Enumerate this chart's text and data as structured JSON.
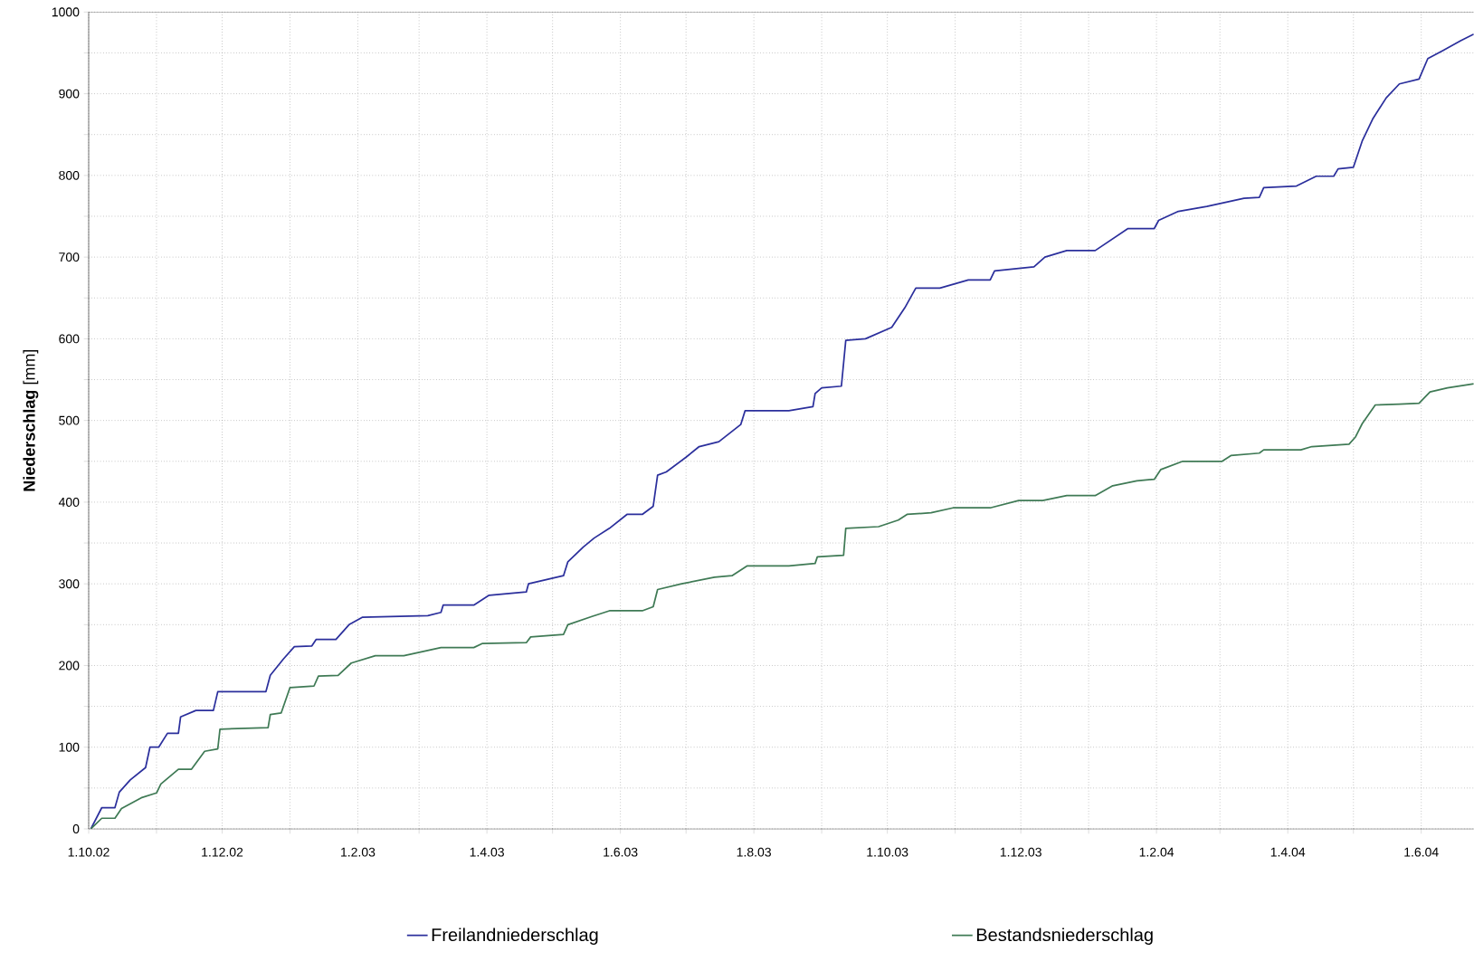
{
  "chart_data": {
    "type": "line",
    "ylabel": "**Niederschlag**  [mm]",
    "xlim": [
      "2002-10-01",
      "2004-06-25"
    ],
    "ylim": [
      0,
      1000
    ],
    "xticks": [
      {
        "value": "2002-10-01",
        "label": "1.10.02"
      },
      {
        "value": "2002-11-01",
        "label": null
      },
      {
        "value": "2002-12-01",
        "label": "1.12.02"
      },
      {
        "value": "2003-01-01",
        "label": null
      },
      {
        "value": "2003-02-01",
        "label": "1.2.03"
      },
      {
        "value": "2003-03-01",
        "label": null
      },
      {
        "value": "2003-04-01",
        "label": "1.4.03"
      },
      {
        "value": "2003-05-01",
        "label": null
      },
      {
        "value": "2003-06-01",
        "label": "1.6.03"
      },
      {
        "value": "2003-07-01",
        "label": null
      },
      {
        "value": "2003-08-01",
        "label": "1.8.03"
      },
      {
        "value": "2003-09-01",
        "label": null
      },
      {
        "value": "2003-10-01",
        "label": "1.10.03"
      },
      {
        "value": "2003-11-01",
        "label": null
      },
      {
        "value": "2003-12-01",
        "label": "1.12.03"
      },
      {
        "value": "2004-01-01",
        "label": null
      },
      {
        "value": "2004-02-01",
        "label": "1.2.04"
      },
      {
        "value": "2004-03-01",
        "label": null
      },
      {
        "value": "2004-04-01",
        "label": "1.4.04"
      },
      {
        "value": "2004-05-01",
        "label": null
      },
      {
        "value": "2004-06-01",
        "label": "1.6.04"
      }
    ],
    "yticks": [
      0,
      {
        "value": 50,
        "label": null
      },
      100,
      {
        "value": 150,
        "label": null
      },
      200,
      {
        "value": 250,
        "label": null
      },
      300,
      {
        "value": 350,
        "label": null
      },
      400,
      {
        "value": 450,
        "label": null
      },
      500,
      {
        "value": 550,
        "label": null
      },
      600,
      {
        "value": 650,
        "label": null
      },
      700,
      {
        "value": 750,
        "label": null
      },
      800,
      {
        "value": 850,
        "label": null
      },
      900,
      {
        "value": 950,
        "label": null
      },
      1000
    ],
    "grid": true,
    "legend": "bottom",
    "series": [
      {
        "name": "Freilandniederschlag",
        "color": "#2b2f9c",
        "x": [
          "2002-10-02",
          "2002-10-07",
          "2002-10-13",
          "2002-10-15",
          "2002-10-20",
          "2002-10-27",
          "2002-10-29",
          "2002-11-02",
          "2002-11-06",
          "2002-11-11",
          "2002-11-12",
          "2002-11-19",
          "2002-11-27",
          "2002-11-29",
          "2002-12-21",
          "2002-12-23",
          "2002-12-29",
          "2003-01-03",
          "2003-01-11",
          "2003-01-13",
          "2003-01-22",
          "2003-01-28",
          "2003-02-03",
          "2003-03-05",
          "2003-03-11",
          "2003-03-12",
          "2003-03-26",
          "2003-04-02",
          "2003-04-19",
          "2003-04-20",
          "2003-05-06",
          "2003-05-08",
          "2003-05-15",
          "2003-05-20",
          "2003-05-27",
          "2003-06-04",
          "2003-06-11",
          "2003-06-16",
          "2003-06-18",
          "2003-06-22",
          "2003-07-01",
          "2003-07-07",
          "2003-07-16",
          "2003-07-26",
          "2003-07-28",
          "2003-08-17",
          "2003-08-28",
          "2003-08-29",
          "2003-09-01",
          "2003-09-10",
          "2003-09-12",
          "2003-09-21",
          "2003-10-03",
          "2003-10-09",
          "2003-10-14",
          "2003-10-25",
          "2003-11-07",
          "2003-11-17",
          "2003-11-19",
          "2003-12-07",
          "2003-12-12",
          "2003-12-22",
          "2004-01-04",
          "2004-01-19",
          "2004-01-31",
          "2004-02-02",
          "2004-02-11",
          "2004-02-24",
          "2004-03-12",
          "2004-03-19",
          "2004-03-21",
          "2004-04-05",
          "2004-04-14",
          "2004-04-22",
          "2004-04-24",
          "2004-05-01",
          "2004-05-05",
          "2004-05-10",
          "2004-05-16",
          "2004-05-22",
          "2004-05-31",
          "2004-06-04",
          "2004-06-11",
          "2004-06-19",
          "2004-06-25"
        ],
        "values": [
          0,
          26,
          26,
          45,
          60,
          75,
          100,
          100,
          117,
          117,
          137,
          145,
          145,
          168,
          168,
          188,
          208,
          223,
          224,
          232,
          232,
          250,
          259,
          261,
          265,
          274,
          274,
          286,
          290,
          300,
          310,
          327,
          345,
          356,
          368,
          385,
          385,
          395,
          433,
          437,
          455,
          468,
          474,
          495,
          512,
          512,
          517,
          533,
          540,
          542,
          598,
          600,
          614,
          638,
          662,
          662,
          672,
          672,
          683,
          688,
          700,
          708,
          708,
          735,
          735,
          745,
          756,
          762,
          772,
          773,
          785,
          787,
          799,
          799,
          808,
          810,
          842,
          870,
          895,
          912,
          918,
          943,
          953,
          965,
          973
        ]
      },
      {
        "name": "Bestandsniederschlag",
        "color": "#3f7a55",
        "x": [
          "2002-10-02",
          "2002-10-07",
          "2002-10-13",
          "2002-10-16",
          "2002-10-25",
          "2002-11-01",
          "2002-11-03",
          "2002-11-11",
          "2002-11-17",
          "2002-11-23",
          "2002-11-29",
          "2002-11-30",
          "2002-12-22",
          "2002-12-23",
          "2002-12-28",
          "2003-01-01",
          "2003-01-12",
          "2003-01-14",
          "2003-01-23",
          "2003-01-29",
          "2003-02-09",
          "2003-02-22",
          "2003-03-11",
          "2003-03-26",
          "2003-03-30",
          "2003-04-19",
          "2003-04-21",
          "2003-05-06",
          "2003-05-08",
          "2003-05-19",
          "2003-05-27",
          "2003-06-11",
          "2003-06-16",
          "2003-06-18",
          "2003-06-29",
          "2003-07-14",
          "2003-07-22",
          "2003-07-29",
          "2003-08-17",
          "2003-08-29",
          "2003-08-30",
          "2003-09-11",
          "2003-09-12",
          "2003-09-27",
          "2003-10-06",
          "2003-10-10",
          "2003-10-21",
          "2003-10-31",
          "2003-11-17",
          "2003-11-30",
          "2003-12-11",
          "2003-12-22",
          "2004-01-04",
          "2004-01-12",
          "2004-01-23",
          "2004-01-31",
          "2004-02-03",
          "2004-02-13",
          "2004-03-02",
          "2004-03-06",
          "2004-03-19",
          "2004-03-21",
          "2004-04-07",
          "2004-04-12",
          "2004-04-29",
          "2004-05-02",
          "2004-05-05",
          "2004-05-11",
          "2004-05-22",
          "2004-05-31",
          "2004-06-05",
          "2004-06-13",
          "2004-06-25"
        ],
        "values": [
          0,
          13,
          13,
          25,
          38,
          44,
          55,
          73,
          73,
          95,
          98,
          122,
          124,
          140,
          142,
          173,
          175,
          187,
          188,
          203,
          212,
          212,
          222,
          222,
          227,
          228,
          235,
          238,
          250,
          260,
          267,
          267,
          272,
          293,
          300,
          308,
          310,
          322,
          322,
          325,
          333,
          335,
          368,
          370,
          378,
          385,
          387,
          393,
          393,
          402,
          402,
          408,
          408,
          420,
          426,
          428,
          440,
          450,
          450,
          457,
          460,
          464,
          464,
          468,
          471,
          480,
          496,
          519,
          520,
          521,
          535,
          540,
          545
        ]
      }
    ]
  }
}
